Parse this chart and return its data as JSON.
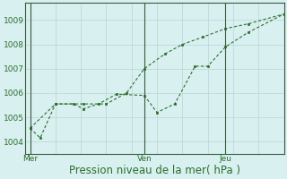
{
  "xlabel": "Pression niveau de la mer( hPa )",
  "bg_color": "#d8f0f0",
  "line_color": "#2d6e2d",
  "grid_color": "#c0d8d8",
  "yticks": [
    1004,
    1005,
    1006,
    1007,
    1008,
    1009
  ],
  "ylim": [
    1003.5,
    1009.7
  ],
  "xtick_labels": [
    "Mer",
    "Ven",
    "Jeu"
  ],
  "xtick_positions": [
    0.0,
    0.45,
    0.77
  ],
  "vline_positions": [
    0.0,
    0.45,
    0.77
  ],
  "xlim": [
    -0.02,
    1.0
  ],
  "line1_x": [
    0.0,
    0.04,
    0.1,
    0.17,
    0.21,
    0.27,
    0.34,
    0.45,
    0.5,
    0.57,
    0.65,
    0.7,
    0.77,
    0.86,
    1.0
  ],
  "line1_y": [
    1004.55,
    1004.15,
    1005.55,
    1005.55,
    1005.35,
    1005.55,
    1005.95,
    1005.9,
    1005.2,
    1005.55,
    1007.1,
    1007.1,
    1007.9,
    1008.5,
    1009.25
  ],
  "line2_x": [
    0.0,
    0.1,
    0.21,
    0.3,
    0.38,
    0.45,
    0.53,
    0.6,
    0.68,
    0.77,
    0.86,
    1.0
  ],
  "line2_y": [
    1004.55,
    1005.55,
    1005.55,
    1005.55,
    1006.0,
    1007.0,
    1007.6,
    1008.0,
    1008.3,
    1008.65,
    1008.85,
    1009.25
  ],
  "font_color": "#2d6e2d",
  "font_size_tick": 6.5,
  "font_size_xlabel": 8.5
}
